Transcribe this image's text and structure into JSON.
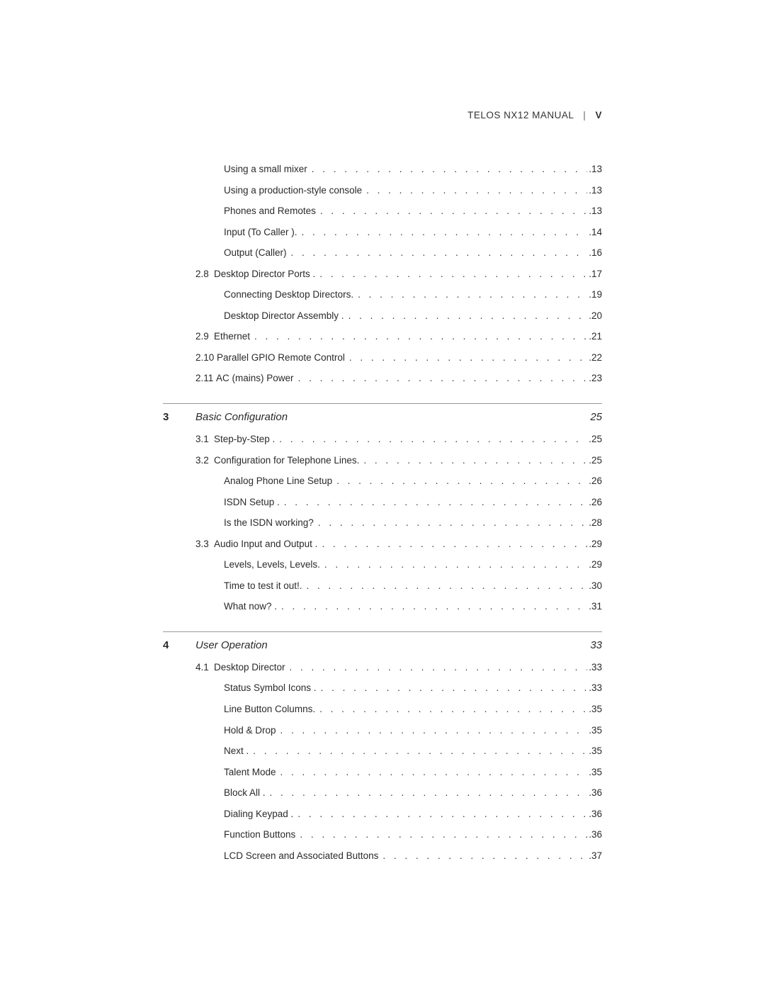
{
  "running_head": {
    "title": "TELOS NX12 MANUAL",
    "page_roman": "V"
  },
  "leaders": " .  .  .  .  .  .  .  .  .  .  .  .  .  .  .  .  .  .  .  .  .  .  .  .  .  .  .  .  .  .  .  .  .  .  .  .  .  .  .  .  .  .  .  .  .  .  .  .  .  .  .  .  .  .  .  .  .  .  .  .",
  "pre_entries": [
    {
      "level": "sub",
      "label": "Using a small mixer",
      "page": "13"
    },
    {
      "level": "sub",
      "label": "Using a production-style console",
      "page": "13"
    },
    {
      "level": "sub",
      "label": "Phones and Remotes",
      "page": "13"
    },
    {
      "level": "sub",
      "label": "Input (To Caller ).",
      "page": "14"
    },
    {
      "level": "sub",
      "label": "Output (Caller)",
      "page": "16"
    },
    {
      "level": "sec",
      "section": "2.8",
      "label": "Desktop Director Ports .",
      "page": "17"
    },
    {
      "level": "sub",
      "label": "Connecting Desktop Directors.",
      "page": "19"
    },
    {
      "level": "sub",
      "label": "Desktop Director Assembly .",
      "page": "20"
    },
    {
      "level": "sec",
      "section": "2.9",
      "label": "Ethernet",
      "page": "21"
    },
    {
      "level": "sec",
      "section": "2.10",
      "label": "Parallel GPIO Remote Control",
      "page": "22"
    },
    {
      "level": "sec",
      "section": "2.11",
      "label": "AC (mains) Power",
      "page": "23"
    }
  ],
  "chapters": [
    {
      "num": "3",
      "title": "Basic Configuration",
      "page": "25",
      "entries": [
        {
          "level": "sec",
          "section": "3.1",
          "label": "Step-by-Step .",
          "page": "25"
        },
        {
          "level": "sec",
          "section": "3.2",
          "label": "Configuration for Telephone Lines.",
          "page": "25"
        },
        {
          "level": "sub",
          "label": "Analog Phone Line Setup",
          "page": "26"
        },
        {
          "level": "sub",
          "label": "ISDN Setup .",
          "page": "26"
        },
        {
          "level": "sub",
          "label": "Is the ISDN working?",
          "page": "28"
        },
        {
          "level": "sec",
          "section": "3.3",
          "label": "Audio Input and Output .",
          "page": "29"
        },
        {
          "level": "sub",
          "label": "Levels, Levels, Levels.",
          "page": "29"
        },
        {
          "level": "sub",
          "label": "Time to test it out!.",
          "page": "30"
        },
        {
          "level": "sub",
          "label": "What now? .",
          "page": "31"
        }
      ]
    },
    {
      "num": "4",
      "title": "User Operation",
      "page": "33",
      "entries": [
        {
          "level": "sec",
          "section": "4.1",
          "label": "Desktop Director",
          "page": "33"
        },
        {
          "level": "sub",
          "label": "Status Symbol Icons .",
          "page": "33"
        },
        {
          "level": "sub",
          "label": "Line Button Columns.",
          "page": "35"
        },
        {
          "level": "sub",
          "label": "Hold & Drop",
          "page": "35"
        },
        {
          "level": "sub",
          "label": "Next .",
          "page": "35"
        },
        {
          "level": "sub",
          "label": "Talent Mode",
          "page": "35"
        },
        {
          "level": "sub",
          "label": "Block All .",
          "page": "36"
        },
        {
          "level": "sub",
          "label": "Dialing Keypad .",
          "page": "36"
        },
        {
          "level": "sub",
          "label": "Function Buttons",
          "page": "36"
        },
        {
          "level": "sub",
          "label": "LCD Screen and Associated Buttons",
          "page": "37"
        }
      ]
    }
  ]
}
